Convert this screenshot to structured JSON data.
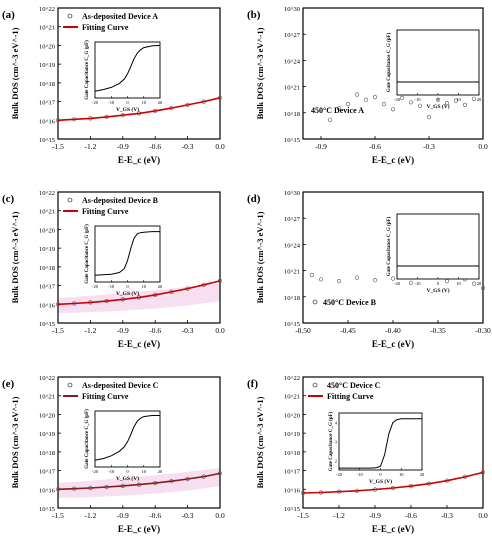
{
  "figure": {
    "panels": [
      {
        "id": "a",
        "panel_label": "(a)",
        "title": "As-deposited Device A",
        "legend": [
          "As-deposited Device A",
          "Fitting Curve"
        ],
        "xlabel": "E-E_c (eV)",
        "ylabel": "Bulk DOS (cm^-3 eV^-1)",
        "x_ticks": [
          "-1.5",
          "-1.2",
          "-0.9",
          "-0.6",
          "-0.3",
          "0.0"
        ],
        "y_ticks": [
          "10^15",
          "10^16",
          "10^17",
          "10^18",
          "10^19",
          "10^20",
          "10^21",
          "10^22"
        ],
        "inset": {
          "ylabel": "Gate Capacitance C_G (pF)",
          "xlabel": "V_GS (V)",
          "x_ticks": [
            "-20",
            "-10",
            "0",
            "10",
            "20"
          ]
        }
      },
      {
        "id": "b",
        "panel_label": "(b)",
        "title": "450°C Device A",
        "legend": [],
        "xlabel": "E-E_c (eV)",
        "ylabel": "Bulk DOS (cm^-3 eV^-1)",
        "x_ticks": [
          "-0.9",
          "-0.6",
          "-0.3",
          "0.0"
        ],
        "y_ticks": [
          "10^15",
          "10^18",
          "10^21",
          "10^24",
          "10^27",
          "10^30"
        ],
        "inset": {
          "ylabel": "Gate Capacitance C_G (pF)",
          "xlabel": "V_GS (V)",
          "x_ticks": [
            "-20",
            "-10",
            "0",
            "10",
            "20"
          ]
        }
      },
      {
        "id": "c",
        "panel_label": "(c)",
        "title": "As-deposited Device B",
        "legend": [
          "As-deposited Device B",
          "Fitting Curve"
        ],
        "xlabel": "E-E_c (eV)",
        "ylabel": "Bulk DOS (cm^-3 eV^-1)",
        "x_ticks": [
          "-1.5",
          "-1.2",
          "-0.9",
          "-0.6",
          "-0.3",
          "0.0"
        ],
        "y_ticks": [
          "10^15",
          "10^16",
          "10^17",
          "10^18",
          "10^19",
          "10^20",
          "10^21",
          "10^22"
        ],
        "inset": {
          "ylabel": "Gate Capacitance C_G (pF)",
          "xlabel": "V_GS (V)",
          "x_ticks": [
            "-20",
            "-10",
            "0",
            "10",
            "20"
          ]
        }
      },
      {
        "id": "d",
        "panel_label": "(d)",
        "title": "450°C Device B",
        "legend": [],
        "xlabel": "E-E_c (eV)",
        "ylabel": "Bulk DOS (cm^-3 eV^-1)",
        "x_ticks": [
          "-0.50",
          "-0.45",
          "-0.40",
          "-0.35",
          "-0.30"
        ],
        "y_ticks": [
          "10^15",
          "10^18",
          "10^21",
          "10^24",
          "10^27",
          "10^30"
        ],
        "inset": {
          "ylabel": "Gate Capacitance C_G (pF)",
          "xlabel": "V_GS (V)",
          "x_ticks": [
            "-20",
            "-10",
            "0",
            "10",
            "20"
          ]
        }
      },
      {
        "id": "e",
        "panel_label": "(e)",
        "title": "As-deposited Device C",
        "legend": [
          "As-deposited Device C",
          "Fitting Curve"
        ],
        "xlabel": "E-E_c (eV)",
        "ylabel": "Bulk DOS (cm^-3 eV^-1)",
        "x_ticks": [
          "-1.5",
          "-1.2",
          "-0.9",
          "-0.6",
          "-0.3",
          "0.0"
        ],
        "y_ticks": [
          "10^15",
          "10^16",
          "10^17",
          "10^18",
          "10^19",
          "10^20",
          "10^21",
          "10^22"
        ],
        "inset": {
          "ylabel": "Gate Capacitance C_G (pF)",
          "xlabel": "V_GS (V)",
          "x_ticks": [
            "-20",
            "-10",
            "0",
            "10",
            "20"
          ]
        }
      },
      {
        "id": "f",
        "panel_label": "(f)",
        "title": "450°C Device C",
        "legend": [
          "450°C Device C",
          "Fitting Curve"
        ],
        "xlabel": "E-E_c (eV)",
        "ylabel": "Bulk DOS (cm^-3 eV^-1)",
        "x_ticks": [
          "-1.5",
          "-1.2",
          "-0.9",
          "-0.6",
          "-0.3",
          "0.0"
        ],
        "y_ticks": [
          "10^15",
          "10^16",
          "10^17",
          "10^18",
          "10^19",
          "10^20",
          "10^21",
          "10^22"
        ],
        "inset": {
          "ylabel": "Gate Capacitance C_G (pF)",
          "xlabel": "V_GS (V)",
          "x_ticks": [
            "-20",
            "-10",
            "0",
            "10",
            "20"
          ],
          "y_ticks": [
            "2",
            "3",
            "4"
          ]
        }
      }
    ]
  },
  "chart_data": [
    {
      "panel": "a",
      "type": "scatter",
      "title": "",
      "xlabel": "E-E_c (eV)",
      "ylabel": "Bulk DOS (cm^-3 eV^-1)",
      "xlim": [
        -1.5,
        0.0
      ],
      "ylim_log10": [
        15,
        22
      ],
      "log_y": true,
      "legend_position": "top-left",
      "series": [
        {
          "name": "As-deposited Device A",
          "style": "open-circles",
          "x": [
            -1.5,
            -1.35,
            -1.2,
            -1.05,
            -0.9,
            -0.75,
            -0.6,
            -0.45,
            -0.3,
            -0.15,
            0.0
          ],
          "log10_y": [
            16.0,
            16.05,
            16.1,
            16.18,
            16.27,
            16.37,
            16.5,
            16.65,
            16.82,
            17.0,
            17.2
          ]
        },
        {
          "name": "Fitting Curve",
          "style": "line",
          "color": "#cc0000",
          "x": [
            -1.5,
            -1.35,
            -1.2,
            -1.05,
            -0.9,
            -0.75,
            -0.6,
            -0.45,
            -0.3,
            -0.15,
            0.0
          ],
          "log10_y": [
            16.0,
            16.05,
            16.1,
            16.18,
            16.27,
            16.37,
            16.5,
            16.65,
            16.82,
            17.0,
            17.2
          ]
        }
      ],
      "inset": {
        "type": "line",
        "xlabel": "V_GS (V)",
        "ylabel": "Gate Capacitance C_G (pF)",
        "xlim": [
          -20,
          20
        ],
        "x": [
          -20,
          -15,
          -10,
          -5,
          -2,
          0,
          2,
          4,
          6,
          8,
          10,
          15,
          20
        ],
        "y": [
          0.12,
          0.15,
          0.19,
          0.26,
          0.34,
          0.43,
          0.56,
          0.7,
          0.8,
          0.86,
          0.9,
          0.93,
          0.94
        ]
      }
    },
    {
      "panel": "b",
      "type": "scatter",
      "title": "",
      "xlabel": "E-E_c (eV)",
      "ylabel": "Bulk DOS (cm^-3 eV^-1)",
      "xlim": [
        -0.9,
        0.0
      ],
      "ylim_log10": [
        15,
        30
      ],
      "log_y": true,
      "series": [
        {
          "name": "450°C Device A",
          "style": "open-circles",
          "x": [
            -0.85,
            -0.8,
            -0.75,
            -0.7,
            -0.65,
            -0.6,
            -0.55,
            -0.5,
            -0.45,
            -0.4,
            -0.35,
            -0.3,
            -0.25,
            -0.2,
            -0.15,
            -0.1,
            -0.05
          ],
          "log10_y": [
            17.2,
            18.5,
            19.0,
            20.1,
            19.5,
            19.8,
            19.0,
            18.4,
            19.7,
            19.2,
            18.8,
            17.5,
            19.5,
            19.1,
            19.4,
            18.9,
            19.6
          ]
        }
      ],
      "inset": {
        "type": "line",
        "xlabel": "V_GS (V)",
        "ylabel": "Gate Capacitance C_G (pF)",
        "xlim": [
          -20,
          20
        ],
        "x": [
          -20,
          20
        ],
        "y": [
          0.2,
          0.2
        ]
      }
    },
    {
      "panel": "c",
      "type": "scatter",
      "title": "",
      "xlabel": "E-E_c (eV)",
      "ylabel": "Bulk DOS (cm^-3 eV^-1)",
      "xlim": [
        -1.5,
        0.0
      ],
      "ylim_log10": [
        15,
        22
      ],
      "log_y": true,
      "legend_position": "top-left",
      "series": [
        {
          "name": "As-deposited Device B",
          "style": "open-circles",
          "x": [
            -1.5,
            -1.35,
            -1.2,
            -1.05,
            -0.9,
            -0.75,
            -0.6,
            -0.45,
            -0.3,
            -0.15,
            0.0
          ],
          "log10_y": [
            16.0,
            16.04,
            16.1,
            16.17,
            16.26,
            16.37,
            16.5,
            16.66,
            16.84,
            17.04,
            17.25
          ]
        },
        {
          "name": "Fitting Curve",
          "style": "line",
          "color": "#cc0000",
          "x": [
            -1.5,
            -1.35,
            -1.2,
            -1.05,
            -0.9,
            -0.75,
            -0.6,
            -0.45,
            -0.3,
            -0.15,
            0.0
          ],
          "log10_y": [
            16.0,
            16.04,
            16.1,
            16.17,
            16.26,
            16.37,
            16.5,
            16.66,
            16.84,
            17.04,
            17.25
          ]
        }
      ],
      "inset": {
        "type": "line",
        "xlabel": "V_GS (V)",
        "ylabel": "Gate Capacitance C_G (pF)",
        "xlim": [
          -20,
          20
        ],
        "x": [
          -20,
          -10,
          -5,
          -2,
          0,
          2,
          4,
          6,
          8,
          10,
          15,
          20
        ],
        "y": [
          0.12,
          0.14,
          0.17,
          0.24,
          0.38,
          0.6,
          0.78,
          0.86,
          0.88,
          0.89,
          0.9,
          0.9
        ]
      }
    },
    {
      "panel": "d",
      "type": "scatter",
      "title": "",
      "xlabel": "E-E_c (eV)",
      "ylabel": "Bulk DOS (cm^-3 eV^-1)",
      "xlim": [
        -0.5,
        -0.3
      ],
      "ylim_log10": [
        15,
        30
      ],
      "log_y": true,
      "series": [
        {
          "name": "450°C Device B",
          "style": "open-circles",
          "x": [
            -0.49,
            -0.48,
            -0.46,
            -0.44,
            -0.42,
            -0.4,
            -0.38,
            -0.36,
            -0.34,
            -0.32,
            -0.31,
            -0.3
          ],
          "log10_y": [
            20.5,
            20.0,
            19.8,
            20.2,
            19.9,
            20.1,
            19.6,
            20.3,
            19.8,
            20.0,
            19.5,
            19.0
          ]
        }
      ],
      "inset": {
        "type": "line",
        "xlabel": "V_GS (V)",
        "ylabel": "Gate Capacitance C_G (pF)",
        "xlim": [
          -20,
          20
        ],
        "x": [
          -20,
          20
        ],
        "y": [
          0.2,
          0.2
        ]
      }
    },
    {
      "panel": "e",
      "type": "scatter",
      "title": "",
      "xlabel": "E-E_c (eV)",
      "ylabel": "Bulk DOS (cm^-3 eV^-1)",
      "xlim": [
        -1.5,
        0.0
      ],
      "ylim_log10": [
        15,
        22
      ],
      "log_y": true,
      "legend_position": "top-left",
      "series": [
        {
          "name": "As-deposited Device C",
          "style": "open-circles",
          "x": [
            -1.5,
            -1.35,
            -1.2,
            -1.05,
            -0.9,
            -0.75,
            -0.6,
            -0.45,
            -0.3,
            -0.15,
            0.0
          ],
          "log10_y": [
            16.0,
            16.03,
            16.07,
            16.12,
            16.18,
            16.25,
            16.33,
            16.43,
            16.55,
            16.68,
            16.85
          ]
        },
        {
          "name": "Fitting Curve",
          "style": "line",
          "color": "#8b1a1a",
          "x": [
            -1.5,
            -1.35,
            -1.2,
            -1.05,
            -0.9,
            -0.75,
            -0.6,
            -0.45,
            -0.3,
            -0.15,
            0.0
          ],
          "log10_y": [
            16.0,
            16.03,
            16.07,
            16.12,
            16.18,
            16.25,
            16.33,
            16.43,
            16.55,
            16.68,
            16.85
          ]
        }
      ],
      "inset": {
        "type": "line",
        "xlabel": "V_GS (V)",
        "ylabel": "Gate Capacitance C_G (pF)",
        "xlim": [
          -20,
          20
        ],
        "x": [
          -20,
          -15,
          -10,
          -5,
          -2,
          0,
          2,
          4,
          6,
          8,
          10,
          15,
          20
        ],
        "y": [
          0.12,
          0.15,
          0.2,
          0.28,
          0.36,
          0.45,
          0.58,
          0.72,
          0.82,
          0.87,
          0.9,
          0.92,
          0.92
        ]
      }
    },
    {
      "panel": "f",
      "type": "scatter",
      "title": "",
      "xlabel": "E-E_c (eV)",
      "ylabel": "Bulk DOS (cm^-3 eV^-1)",
      "xlim": [
        -1.5,
        0.0
      ],
      "ylim_log10": [
        15,
        22
      ],
      "log_y": true,
      "legend_position": "top-left",
      "series": [
        {
          "name": "450°C Device C",
          "style": "open-circles",
          "x": [
            -1.5,
            -1.35,
            -1.2,
            -1.05,
            -0.9,
            -0.75,
            -0.6,
            -0.45,
            -0.3,
            -0.15,
            0.0
          ],
          "log10_y": [
            15.8,
            15.83,
            15.87,
            15.92,
            15.99,
            16.07,
            16.17,
            16.3,
            16.46,
            16.66,
            16.9
          ]
        },
        {
          "name": "Fitting Curve",
          "style": "line",
          "color": "#cc0000",
          "x": [
            -1.5,
            -1.35,
            -1.2,
            -1.05,
            -0.9,
            -0.75,
            -0.6,
            -0.45,
            -0.3,
            -0.15,
            0.0
          ],
          "log10_y": [
            15.8,
            15.83,
            15.87,
            15.92,
            15.99,
            16.07,
            16.17,
            16.3,
            16.46,
            16.66,
            16.9
          ]
        }
      ],
      "inset": {
        "type": "line",
        "xlabel": "V_GS (V)",
        "ylabel": "Gate Capacitance C_G (pF)",
        "xlim": [
          -20,
          20
        ],
        "ylim": [
          1.5,
          4.5
        ],
        "x": [
          -20,
          -10,
          -5,
          -2,
          0,
          2,
          4,
          6,
          8,
          10,
          15,
          20
        ],
        "y": [
          1.6,
          1.6,
          1.6,
          1.62,
          1.7,
          2.3,
          3.4,
          4.0,
          4.15,
          4.2,
          4.2,
          4.2
        ]
      }
    }
  ]
}
